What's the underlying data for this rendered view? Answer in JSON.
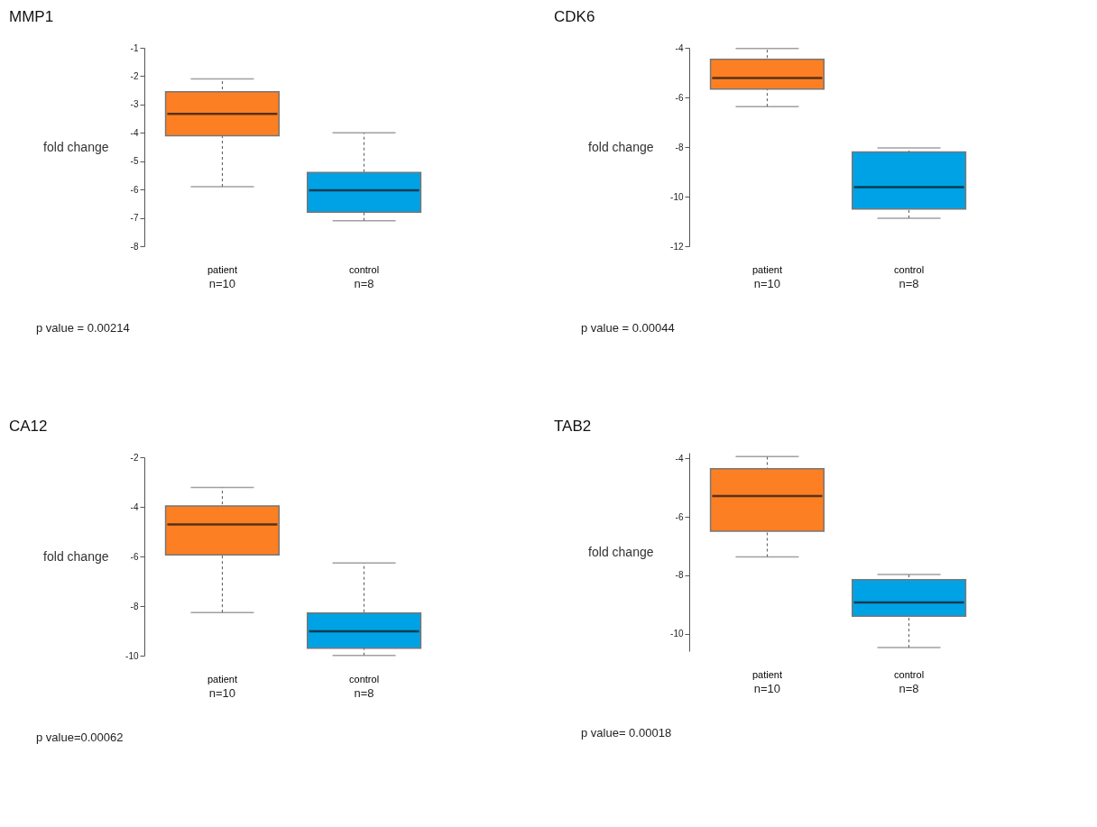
{
  "chart_data": [
    {
      "type": "box",
      "title": "MMP1",
      "ylabel": "fold change",
      "categories": [
        "patient",
        "control"
      ],
      "colors": [
        "#fd7f23",
        "#00a2e6"
      ],
      "ylim": [
        -8,
        -1
      ],
      "yticks": [
        -8,
        -7,
        -6,
        -5,
        -4,
        -3,
        -2,
        -1
      ],
      "boxes": [
        {
          "low": -5.9,
          "q1": -4.1,
          "median": -3.33,
          "q3": -2.55,
          "high": -2.1
        },
        {
          "low": -7.1,
          "q1": -6.8,
          "median": -6.03,
          "q3": -5.4,
          "high": -4.0
        }
      ],
      "annotations": [
        "n=10",
        "n=8",
        "p value = 0.00214"
      ]
    },
    {
      "type": "box",
      "title": "CDK6",
      "ylabel": "fold change",
      "categories": [
        "patient",
        "control"
      ],
      "colors": [
        "#fd7f23",
        "#00a2e6"
      ],
      "ylim": [
        -12,
        -4
      ],
      "yticks": [
        -12,
        -10,
        -8,
        -6,
        -4
      ],
      "boxes": [
        {
          "low": -6.37,
          "q1": -5.66,
          "median": -5.22,
          "q3": -4.46,
          "high": -4.03
        },
        {
          "low": -10.87,
          "q1": -10.5,
          "median": -9.62,
          "q3": -8.2,
          "high": -8.04
        }
      ],
      "annotations": [
        "n=10",
        "n=8",
        "p value = 0.00044"
      ]
    },
    {
      "type": "box",
      "title": "CA12",
      "ylabel": "fold change",
      "categories": [
        "patient",
        "control"
      ],
      "colors": [
        "#fd7f23",
        "#00a2e6"
      ],
      "ylim": [
        -10,
        -2
      ],
      "yticks": [
        -10,
        -8,
        -6,
        -4,
        -2
      ],
      "boxes": [
        {
          "low": -8.26,
          "q1": -5.94,
          "median": -4.71,
          "q3": -3.96,
          "high": -3.22
        },
        {
          "low": -9.99,
          "q1": -9.7,
          "median": -9.02,
          "q3": -8.28,
          "high": -6.26
        }
      ],
      "annotations": [
        "n=10",
        "n=8",
        "p value=0.00062"
      ]
    },
    {
      "type": "box",
      "title": "TAB2",
      "ylabel": "fold change",
      "categories": [
        "patient",
        "control"
      ],
      "colors": [
        "#fd7f23",
        "#00a2e6"
      ],
      "ylim": [
        -10.6,
        -3.8
      ],
      "yticks": [
        -10,
        -8,
        -6,
        -4
      ],
      "boxes": [
        {
          "low": -7.37,
          "q1": -6.49,
          "median": -5.28,
          "q3": -4.35,
          "high": -3.93
        },
        {
          "low": -10.48,
          "q1": -9.4,
          "median": -8.93,
          "q3": -8.15,
          "high": -7.97
        }
      ],
      "annotations": [
        "n=10",
        "n=8",
        "p value= 0.00018"
      ]
    }
  ]
}
